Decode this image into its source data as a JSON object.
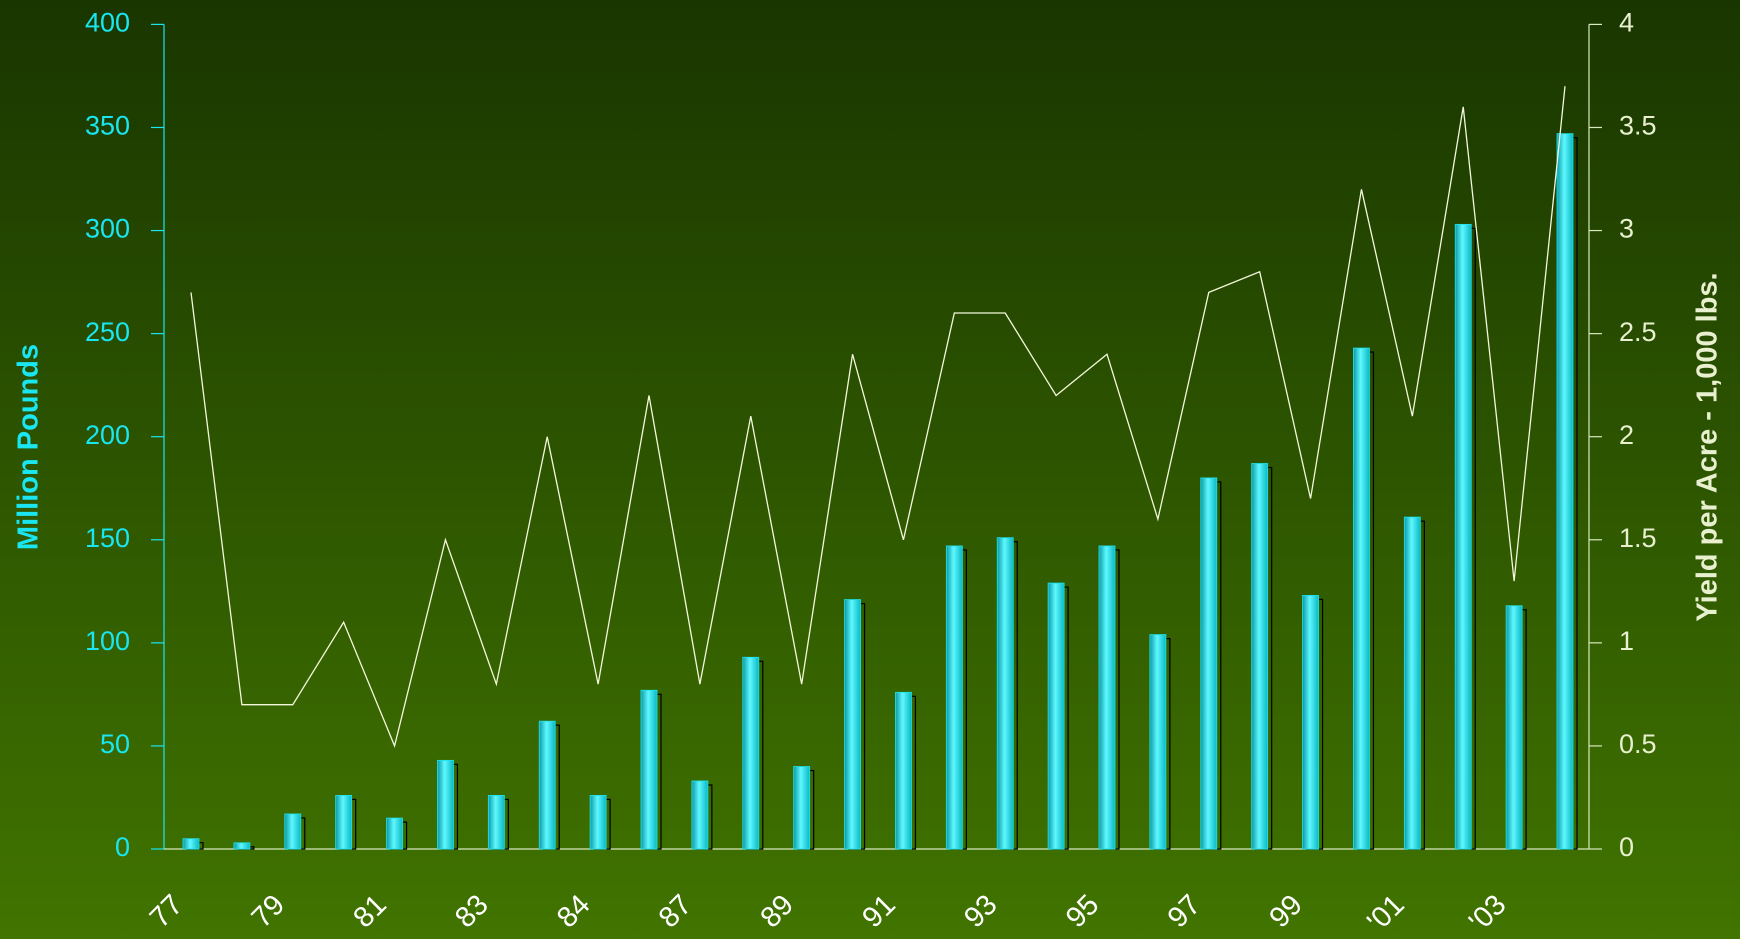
{
  "chart_data": {
    "type": "bar_line",
    "categories": [
      "77",
      null,
      "79",
      null,
      "81",
      null,
      "83",
      null,
      "84",
      null,
      "87",
      null,
      "89",
      null,
      "91",
      null,
      "93",
      null,
      "95",
      null,
      "97",
      null,
      "99",
      null,
      "'01",
      null,
      "'03",
      null
    ],
    "series": [
      {
        "type": "bar",
        "color": "#19e6f0",
        "values": [
          5,
          3,
          17,
          26,
          15,
          43,
          26,
          62,
          26,
          77,
          33,
          93,
          40,
          121,
          76,
          147,
          151,
          129,
          147,
          104,
          180,
          187,
          123,
          243,
          161,
          303,
          118,
          347
        ]
      },
      {
        "type": "line",
        "axis": "y2",
        "color": "#f4f8dc",
        "values": [
          2.7,
          0.7,
          0.7,
          1.1,
          0.5,
          1.5,
          0.8,
          2.0,
          0.8,
          2.2,
          0.8,
          2.1,
          0.8,
          2.4,
          1.5,
          2.6,
          2.6,
          2.2,
          2.4,
          1.6,
          2.7,
          2.8,
          1.7,
          3.2,
          2.1,
          3.6,
          1.3,
          3.7
        ]
      }
    ],
    "ylabel": "Million Pounds",
    "y2label": "Yield per Acre - 1,000 lbs.",
    "ylim": [
      0,
      400
    ],
    "yticks": [
      0,
      50,
      100,
      150,
      200,
      250,
      300,
      350,
      400
    ],
    "y2lim": [
      0,
      4
    ],
    "y2ticks": [
      0,
      0.5,
      1,
      1.5,
      2,
      2.5,
      3,
      3.5,
      4
    ]
  }
}
